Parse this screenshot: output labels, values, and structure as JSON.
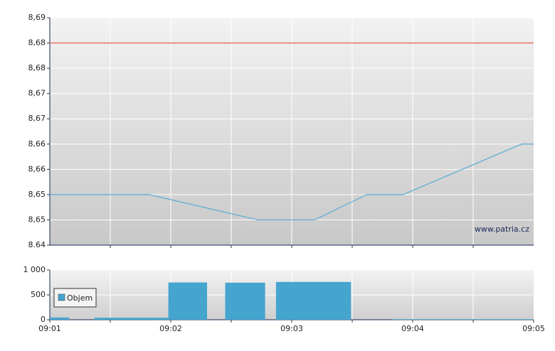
{
  "chart_data": [
    {
      "type": "line",
      "x": [
        541,
        541.82,
        542.72,
        543.19,
        543.62,
        543.92,
        544.9,
        545
      ],
      "values": [
        8.65,
        8.65,
        8.645,
        8.645,
        8.65,
        8.65,
        8.66,
        8.66
      ],
      "color": "#5aaad6",
      "reference_line": {
        "value": 8.68,
        "color": "#e8706a"
      },
      "xlim": [
        541,
        545
      ],
      "xgrid": [
        541.5,
        542,
        542.5,
        543,
        543.5,
        544,
        544.5
      ],
      "ylim": [
        8.64,
        8.685
      ],
      "yticks": [
        8.64,
        {
          "value": 8.645,
          "label": "8,65"
        },
        {
          "value": 8.65,
          "label": "8,65"
        },
        {
          "value": 8.655,
          "label": "8,66"
        },
        {
          "value": 8.66,
          "label": "8,66"
        },
        {
          "value": 8.665,
          "label": "8,67"
        },
        {
          "value": 8.67,
          "label": "8,67"
        },
        {
          "value": 8.675,
          "label": "8,68"
        },
        {
          "value": 8.68,
          "label": "8,68"
        },
        {
          "value": 8.685,
          "label": "8,69"
        }
      ],
      "watermark": "www.patria.cz"
    },
    {
      "type": "bar",
      "series": [
        {
          "name": "Objem",
          "color": "#45a5cf",
          "x": [
            541,
            541.37,
            541.98,
            542.45,
            542.87,
            543.83
          ],
          "x_end": [
            541.16,
            541.98,
            542.3,
            542.78,
            543.49,
            545
          ],
          "values": [
            45,
            40,
            750,
            745,
            760,
            10
          ]
        }
      ],
      "xlim": [
        541,
        545
      ],
      "xticks": [
        {
          "value": 541,
          "label": "09:01"
        },
        {
          "value": 542,
          "label": "09:02"
        },
        {
          "value": 543,
          "label": "09:03"
        },
        {
          "value": 544,
          "label": "09:04"
        },
        {
          "value": 545,
          "label": "09:05"
        }
      ],
      "xgrid": [
        541.5,
        542,
        542.5,
        543,
        543.5,
        544,
        544.5
      ],
      "ylim": [
        0,
        1000
      ],
      "yticks": [
        0,
        500,
        {
          "value": 1000,
          "label": "1 000"
        }
      ]
    }
  ]
}
